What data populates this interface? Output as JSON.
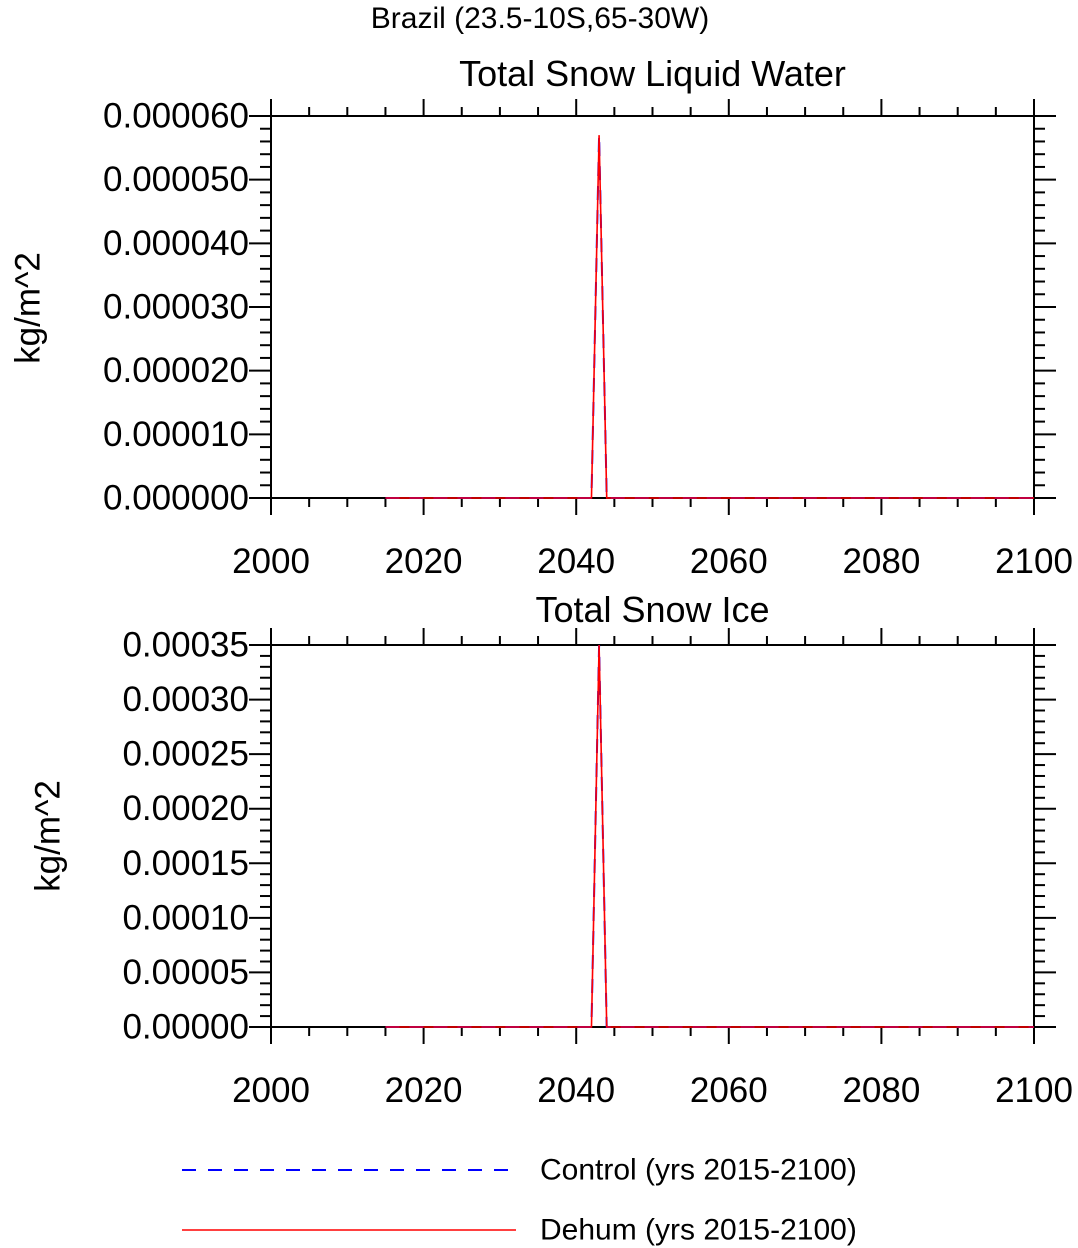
{
  "figure": {
    "suptitle": "Brazil (23.5-10S,65-30W)"
  },
  "colors": {
    "control": "#0000ff",
    "dehum": "#ff0000",
    "axis": "#000000"
  },
  "legend": {
    "placement": "bottom",
    "items": [
      {
        "label": "Control (yrs 2015-2100)",
        "style": "dashed",
        "color_key": "control"
      },
      {
        "label": "Dehum (yrs 2015-2100)",
        "style": "solid",
        "color_key": "dehum"
      }
    ]
  },
  "chart_data": [
    {
      "type": "line",
      "title": "Total Snow Liquid Water",
      "ylabel": "kg/m^2",
      "xlim": [
        2000,
        2100
      ],
      "ylim": [
        0,
        6e-05
      ],
      "xticks": [
        "2000",
        "2020",
        "2040",
        "2060",
        "2080",
        "2100"
      ],
      "yticks": [
        "0.000000",
        "0.000010",
        "0.000020",
        "0.000030",
        "0.000040",
        "0.000050",
        "0.000060"
      ],
      "grid": false,
      "series": [
        {
          "name": "Control (yrs 2015-2100)",
          "x": [
            2015,
            2042,
            2043,
            2044,
            2100
          ],
          "y": [
            0,
            0,
            5.7e-05,
            0,
            0
          ]
        },
        {
          "name": "Dehum (yrs 2015-2100)",
          "x": [
            2015,
            2042,
            2043,
            2044,
            2100
          ],
          "y": [
            0,
            0,
            5.7e-05,
            0,
            0
          ]
        }
      ]
    },
    {
      "type": "line",
      "title": "Total Snow Ice",
      "ylabel": "kg/m^2",
      "xlim": [
        2000,
        2100
      ],
      "ylim": [
        0,
        0.00035
      ],
      "xticks": [
        "2000",
        "2020",
        "2040",
        "2060",
        "2080",
        "2100"
      ],
      "yticks": [
        "0.00000",
        "0.00005",
        "0.00010",
        "0.00015",
        "0.00020",
        "0.00025",
        "0.00030",
        "0.00035"
      ],
      "grid": false,
      "series": [
        {
          "name": "Control (yrs 2015-2100)",
          "x": [
            2015,
            2042,
            2043,
            2044,
            2100
          ],
          "y": [
            0,
            0,
            0.00035,
            0,
            0
          ]
        },
        {
          "name": "Dehum (yrs 2015-2100)",
          "x": [
            2015,
            2042,
            2043,
            2044,
            2100
          ],
          "y": [
            0,
            0,
            0.00035,
            0,
            0
          ]
        }
      ]
    }
  ]
}
